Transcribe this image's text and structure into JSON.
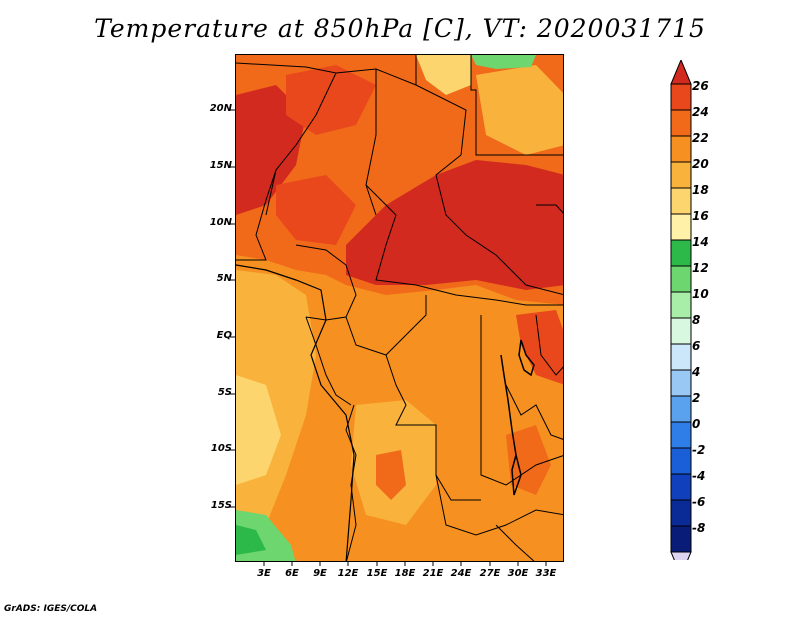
{
  "title": "Temperature at 850hPa [C], VT: 2020031715",
  "footer": "GrADS: IGES/COLA",
  "y_axis_labels": [
    "20N",
    "15N",
    "10N",
    "5N",
    "EQ",
    "5S",
    "10S",
    "15S"
  ],
  "x_axis_labels": [
    "3E",
    "6E",
    "9E",
    "12E",
    "15E",
    "18E",
    "21E",
    "24E",
    "27E",
    "30E",
    "33E"
  ],
  "colorbar": {
    "labels": [
      "26",
      "24",
      "22",
      "20",
      "18",
      "16",
      "14",
      "12",
      "10",
      "8",
      "6",
      "4",
      "2",
      "0",
      "-2",
      "-4",
      "-6",
      "-8"
    ],
    "colors": [
      "#d22a1e",
      "#e8481c",
      "#f06a1a",
      "#f69020",
      "#f9b23c",
      "#fcd56e",
      "#fff2a8",
      "#2db84a",
      "#6ed66e",
      "#a8eea8",
      "#d8f8e0",
      "#cce6fa",
      "#99c8f5",
      "#5aa2ee",
      "#2f7de6",
      "#1a5fd8",
      "#1040bc",
      "#0a2a96",
      "#081c78"
    ],
    "under_color": "#ddd4f2"
  },
  "palette": {
    "t26": "#d22a1e",
    "t24": "#e8481c",
    "t22": "#f06a1a",
    "t20": "#f69020",
    "t18": "#f9b23c",
    "t16": "#fcd56e",
    "t14": "#fff2a8",
    "green": "#6ed66e",
    "green_dark": "#2db84a"
  }
}
